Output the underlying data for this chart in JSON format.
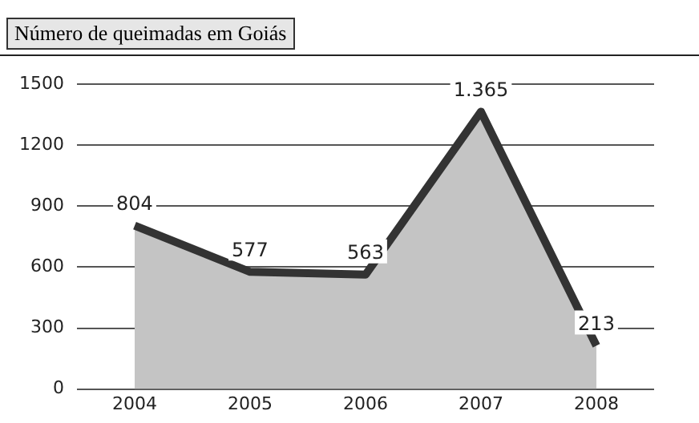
{
  "chart_data": {
    "type": "area",
    "title": "Número de queimadas em Goiás",
    "categories": [
      "2004",
      "2005",
      "2006",
      "2007",
      "2008"
    ],
    "series": [
      {
        "color": "#333333",
        "values": [
          804,
          577,
          563,
          1365,
          213
        ],
        "value_labels": [
          "804",
          "577",
          "563",
          "1.365",
          "213"
        ]
      }
    ],
    "ylim": [
      0,
      1500
    ],
    "yticks": [
      0,
      300,
      600,
      900,
      1200,
      1500
    ],
    "grid": "y",
    "marker": "none"
  }
}
